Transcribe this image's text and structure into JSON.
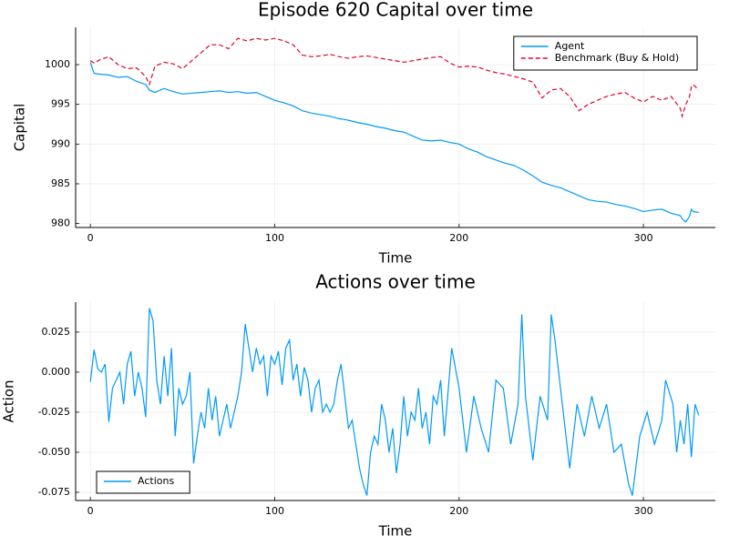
{
  "chart_data": [
    {
      "type": "line",
      "title": "Episode 620 Capital over time",
      "xlabel": "Time",
      "ylabel": "Capital",
      "x": [
        0,
        2,
        5,
        10,
        15,
        20,
        25,
        30,
        32,
        35,
        40,
        45,
        50,
        55,
        60,
        65,
        70,
        75,
        80,
        85,
        90,
        95,
        100,
        105,
        110,
        115,
        120,
        125,
        130,
        135,
        140,
        145,
        150,
        155,
        160,
        165,
        170,
        175,
        180,
        185,
        190,
        195,
        200,
        205,
        210,
        215,
        220,
        225,
        230,
        235,
        240,
        245,
        250,
        255,
        260,
        265,
        270,
        275,
        280,
        285,
        290,
        295,
        300,
        305,
        310,
        315,
        320,
        321,
        323,
        325,
        326,
        327,
        330
      ],
      "series": [
        {
          "name": "Agent",
          "color": "#009af9",
          "dash": false,
          "values": [
            1000.3,
            998.9,
            998.8,
            998.7,
            998.4,
            998.5,
            997.9,
            997.5,
            996.8,
            996.5,
            997.0,
            996.6,
            996.3,
            996.4,
            996.5,
            996.6,
            996.7,
            996.5,
            996.6,
            996.4,
            996.5,
            996.0,
            995.5,
            995.2,
            994.8,
            994.2,
            993.9,
            993.7,
            993.5,
            993.2,
            993.0,
            992.7,
            992.5,
            992.2,
            992.0,
            991.7,
            991.5,
            991.0,
            990.5,
            990.4,
            990.5,
            990.2,
            990.0,
            989.4,
            989.0,
            988.4,
            988.0,
            987.6,
            987.3,
            986.7,
            986.0,
            985.2,
            984.8,
            984.5,
            984.0,
            983.5,
            983.0,
            982.8,
            982.7,
            982.4,
            982.2,
            981.9,
            981.5,
            981.7,
            981.8,
            981.3,
            981.0,
            980.6,
            980.2,
            980.9,
            981.8,
            981.5,
            981.4
          ]
        },
        {
          "name": "Benchmark (Buy & Hold)",
          "color": "#e5002d",
          "dash": true,
          "values": [
            1000.5,
            1000.2,
            1000.6,
            1001.0,
            1000.0,
            999.5,
            999.6,
            998.5,
            997.5,
            999.8,
            1000.3,
            1000.1,
            999.5,
            1000.5,
            1001.5,
            1002.5,
            1002.5,
            1002.0,
            1003.3,
            1003.0,
            1003.3,
            1003.1,
            1003.3,
            1003.0,
            1002.5,
            1001.2,
            1001.0,
            1001.1,
            1001.3,
            1001.0,
            1000.8,
            1001.0,
            1001.1,
            1000.9,
            1000.7,
            1000.5,
            1000.3,
            1000.5,
            1000.7,
            1000.9,
            1001.0,
            1000.2,
            999.7,
            999.8,
            999.7,
            999.3,
            999.0,
            998.8,
            998.5,
            998.2,
            997.8,
            995.8,
            996.8,
            997.0,
            996.0,
            994.2,
            995.0,
            995.5,
            996.0,
            996.3,
            996.5,
            995.8,
            995.3,
            996.0,
            995.5,
            996.0,
            994.5,
            993.5,
            995.0,
            996.0,
            997.2,
            997.5,
            996.8
          ]
        }
      ],
      "xlim": [
        -8,
        339
      ],
      "ylim": [
        979.5,
        1004.7
      ],
      "xticks": [
        0,
        100,
        200,
        300
      ],
      "yticks": [
        980,
        985,
        990,
        995,
        1000
      ],
      "grid": true,
      "legend": "top-right"
    },
    {
      "type": "line",
      "title": "Actions over time",
      "xlabel": "Time",
      "ylabel": "Action",
      "x": [
        0,
        2,
        4,
        6,
        8,
        10,
        12,
        14,
        16,
        18,
        20,
        22,
        24,
        26,
        28,
        30,
        32,
        34,
        36,
        38,
        40,
        42,
        44,
        46,
        48,
        50,
        52,
        54,
        56,
        58,
        60,
        62,
        64,
        66,
        68,
        70,
        72,
        74,
        76,
        78,
        80,
        82,
        84,
        86,
        88,
        90,
        92,
        94,
        96,
        98,
        100,
        102,
        104,
        106,
        108,
        110,
        112,
        114,
        116,
        118,
        120,
        122,
        124,
        126,
        128,
        130,
        132,
        134,
        136,
        138,
        140,
        142,
        144,
        146,
        148,
        150,
        152,
        154,
        156,
        158,
        160,
        162,
        164,
        166,
        168,
        170,
        172,
        174,
        176,
        178,
        180,
        182,
        184,
        186,
        188,
        190,
        192,
        196,
        200,
        204,
        208,
        212,
        216,
        220,
        224,
        228,
        232,
        234,
        236,
        240,
        244,
        248,
        250,
        252,
        256,
        260,
        264,
        268,
        272,
        276,
        280,
        284,
        288,
        292,
        294,
        298,
        302,
        306,
        310,
        312,
        316,
        318,
        320,
        322,
        324,
        326,
        328,
        330
      ],
      "series": [
        {
          "name": "Actions",
          "color": "#009af9",
          "dash": false,
          "values": [
            -0.006,
            0.014,
            0.002,
            0.0,
            0.005,
            -0.031,
            -0.01,
            -0.005,
            0.0,
            -0.02,
            0.005,
            0.013,
            -0.015,
            0.0,
            -0.01,
            -0.028,
            0.04,
            0.032,
            -0.005,
            -0.02,
            0.01,
            -0.015,
            0.015,
            -0.04,
            -0.01,
            -0.02,
            -0.015,
            0.0,
            -0.057,
            -0.04,
            -0.025,
            -0.035,
            -0.01,
            -0.03,
            -0.015,
            -0.04,
            -0.03,
            -0.02,
            -0.035,
            -0.025,
            -0.015,
            0.0,
            0.03,
            0.015,
            0.0,
            0.015,
            0.005,
            0.01,
            -0.015,
            0.01,
            0.005,
            0.013,
            -0.008,
            0.015,
            0.02,
            -0.005,
            0.005,
            -0.015,
            0.003,
            -0.005,
            -0.025,
            -0.01,
            -0.005,
            -0.025,
            -0.02,
            -0.025,
            -0.02,
            -0.005,
            0.005,
            -0.015,
            -0.035,
            -0.03,
            -0.045,
            -0.06,
            -0.07,
            -0.077,
            -0.05,
            -0.04,
            -0.045,
            -0.02,
            -0.03,
            -0.05,
            -0.035,
            -0.063,
            -0.045,
            -0.015,
            -0.04,
            -0.025,
            -0.03,
            -0.01,
            -0.035,
            -0.025,
            -0.045,
            -0.015,
            -0.02,
            -0.005,
            -0.04,
            0.015,
            -0.01,
            -0.05,
            -0.015,
            -0.035,
            -0.05,
            -0.005,
            -0.01,
            -0.045,
            -0.02,
            0.036,
            -0.015,
            -0.055,
            -0.015,
            -0.03,
            0.036,
            0.02,
            -0.02,
            -0.06,
            -0.02,
            -0.04,
            -0.015,
            -0.035,
            -0.02,
            -0.05,
            -0.045,
            -0.07,
            -0.077,
            -0.04,
            -0.025,
            -0.045,
            -0.03,
            -0.005,
            -0.02,
            -0.05,
            -0.03,
            -0.045,
            -0.02,
            -0.053,
            -0.02,
            -0.027
          ]
        }
      ],
      "xlim": [
        -8,
        339
      ],
      "ylim": [
        -0.0801,
        0.0437
      ],
      "xticks": [
        0,
        100,
        200,
        300
      ],
      "yticks": [
        -0.075,
        {
          "value": -0.05,
          "label": "-0.050"
        },
        -0.025,
        {
          "value": 0,
          "label": "0.000"
        },
        0.025
      ],
      "grid": true,
      "legend": "bottom-left"
    }
  ]
}
